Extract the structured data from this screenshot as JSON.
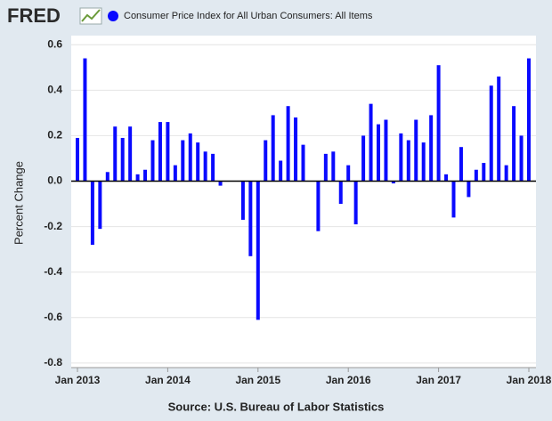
{
  "logo": "FRED",
  "chart_data": {
    "type": "bar",
    "series": [
      {
        "name": "Consumer Price Index for All Urban Consumers: All Items",
        "color": "#0a0aff",
        "values": [
          0.19,
          0.54,
          -0.28,
          -0.21,
          0.04,
          0.24,
          0.19,
          0.24,
          0.03,
          0.05,
          0.18,
          0.26,
          0.26,
          0.07,
          0.18,
          0.21,
          0.17,
          0.13,
          0.12,
          -0.02,
          0.0,
          0.0,
          -0.17,
          -0.33,
          -0.61,
          0.18,
          0.29,
          0.09,
          0.33,
          0.28,
          0.16,
          0.0,
          -0.22,
          0.12,
          0.13,
          -0.1,
          0.07,
          -0.19,
          0.2,
          0.34,
          0.25,
          0.27,
          -0.01,
          0.21,
          0.18,
          0.27,
          0.17,
          0.29,
          0.51,
          0.03,
          -0.16,
          0.15,
          -0.07,
          0.05,
          0.08,
          0.42,
          0.46,
          0.07,
          0.33,
          0.2,
          0.54
        ]
      }
    ],
    "categories": [
      "Jan 2013",
      null,
      null,
      null,
      null,
      null,
      null,
      null,
      null,
      null,
      null,
      null,
      "Jan 2014",
      null,
      null,
      null,
      null,
      null,
      null,
      null,
      null,
      null,
      null,
      null,
      "Jan 2015",
      null,
      null,
      null,
      null,
      null,
      null,
      null,
      null,
      null,
      null,
      null,
      "Jan 2016",
      null,
      null,
      null,
      null,
      null,
      null,
      null,
      null,
      null,
      null,
      null,
      "Jan 2017",
      null,
      null,
      null,
      null,
      null,
      null,
      null,
      null,
      null,
      null,
      null,
      "Jan 2018"
    ],
    "y_label": "Percent Change",
    "source": "Source: U.S. Bureau of Labor Statistics",
    "ylim": [
      -0.82,
      0.64
    ],
    "yticks": [
      -0.8,
      -0.6,
      -0.4,
      -0.2,
      {
        "value": 0,
        "label": "0.0"
      },
      0.2,
      0.4,
      0.6
    ],
    "grid": true
  }
}
